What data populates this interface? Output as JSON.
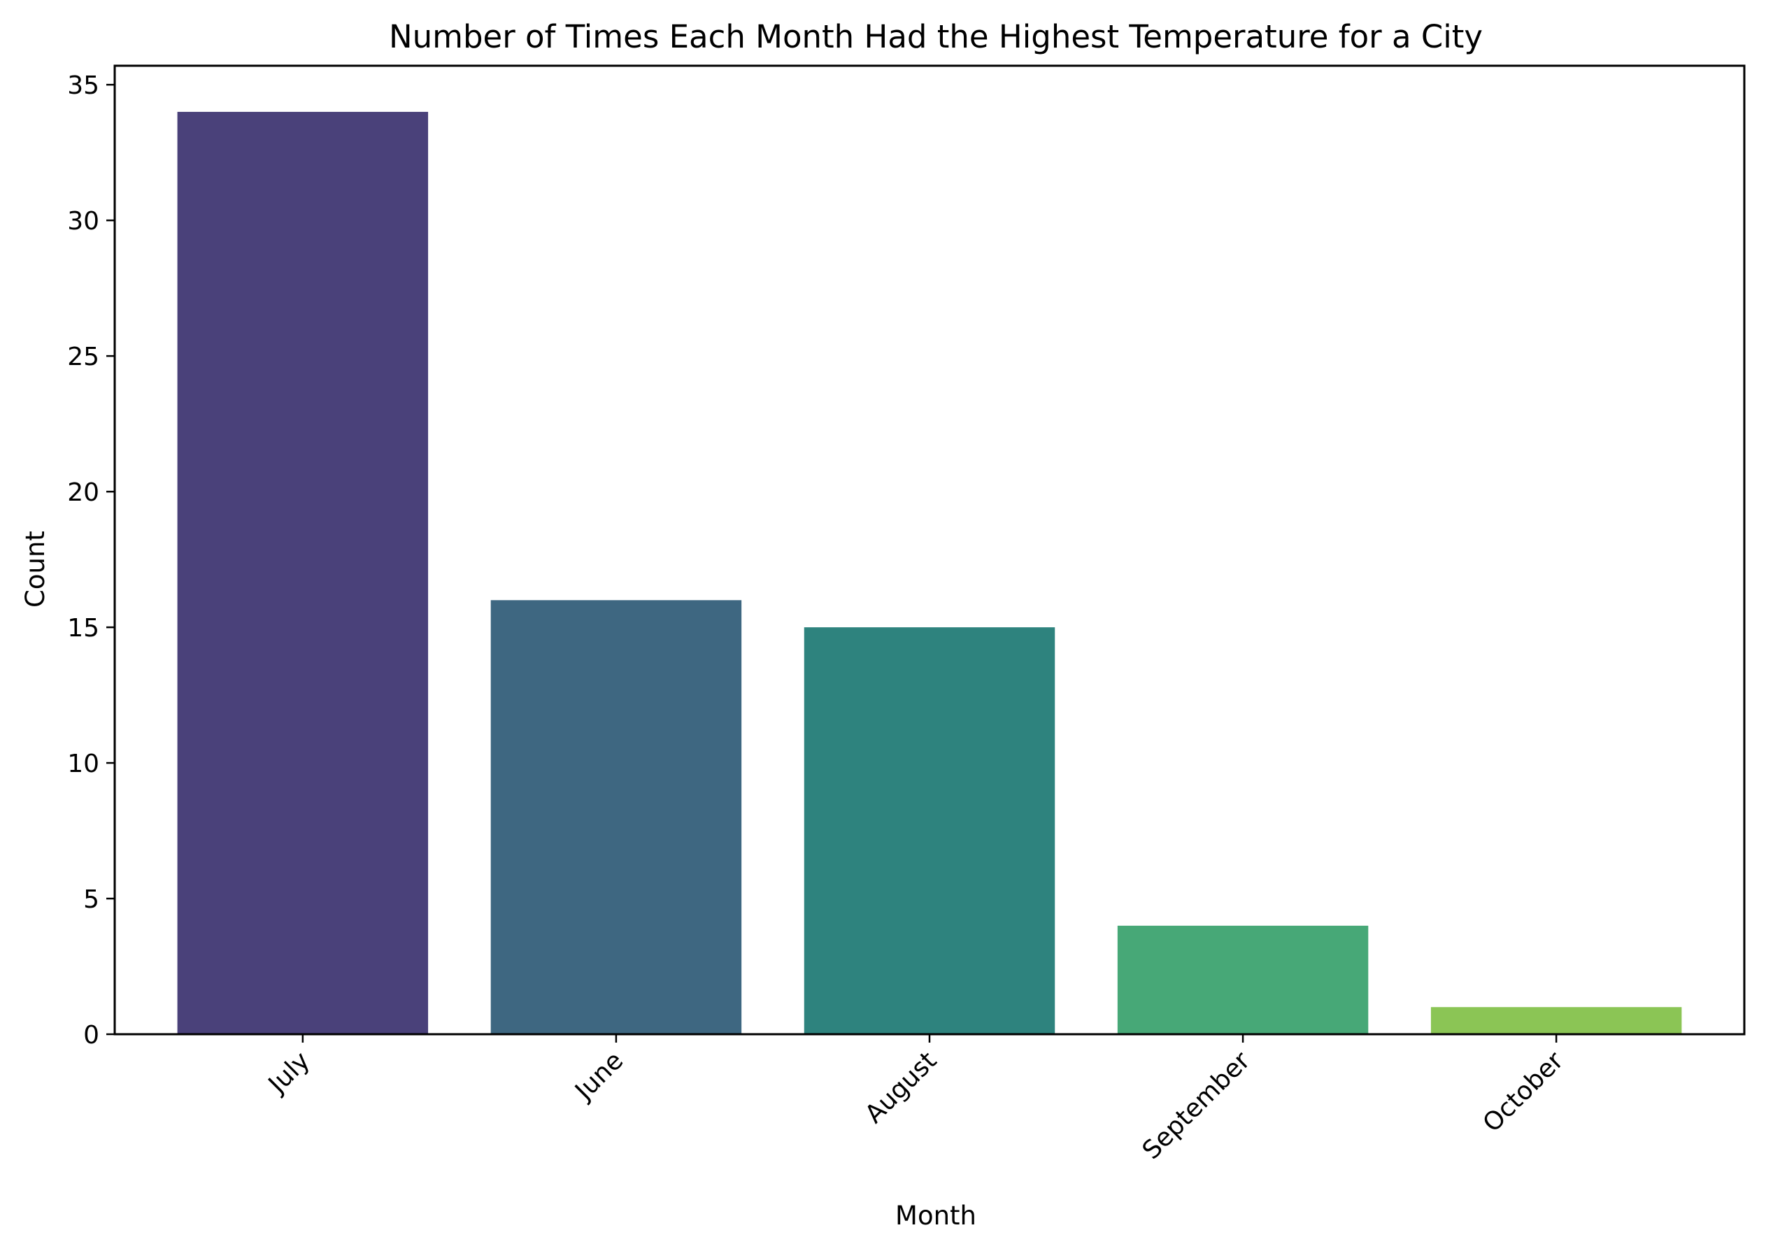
{
  "chart_data": {
    "type": "bar",
    "title": "Number of Times Each Month Had the Highest Temperature for a City",
    "xlabel": "Month",
    "ylabel": "Count",
    "categories": [
      "July",
      "June",
      "August",
      "September",
      "October"
    ],
    "values": [
      34,
      16,
      15,
      4,
      1
    ],
    "colors": [
      "#4a417a",
      "#3e6781",
      "#2e837e",
      "#47a877",
      "#8bc555"
    ],
    "ylim": [
      0,
      35.7
    ],
    "yticks": [
      0,
      5,
      10,
      15,
      20,
      25,
      30,
      35
    ],
    "xtick_rotation": -45,
    "grid": false,
    "legend": false
  }
}
